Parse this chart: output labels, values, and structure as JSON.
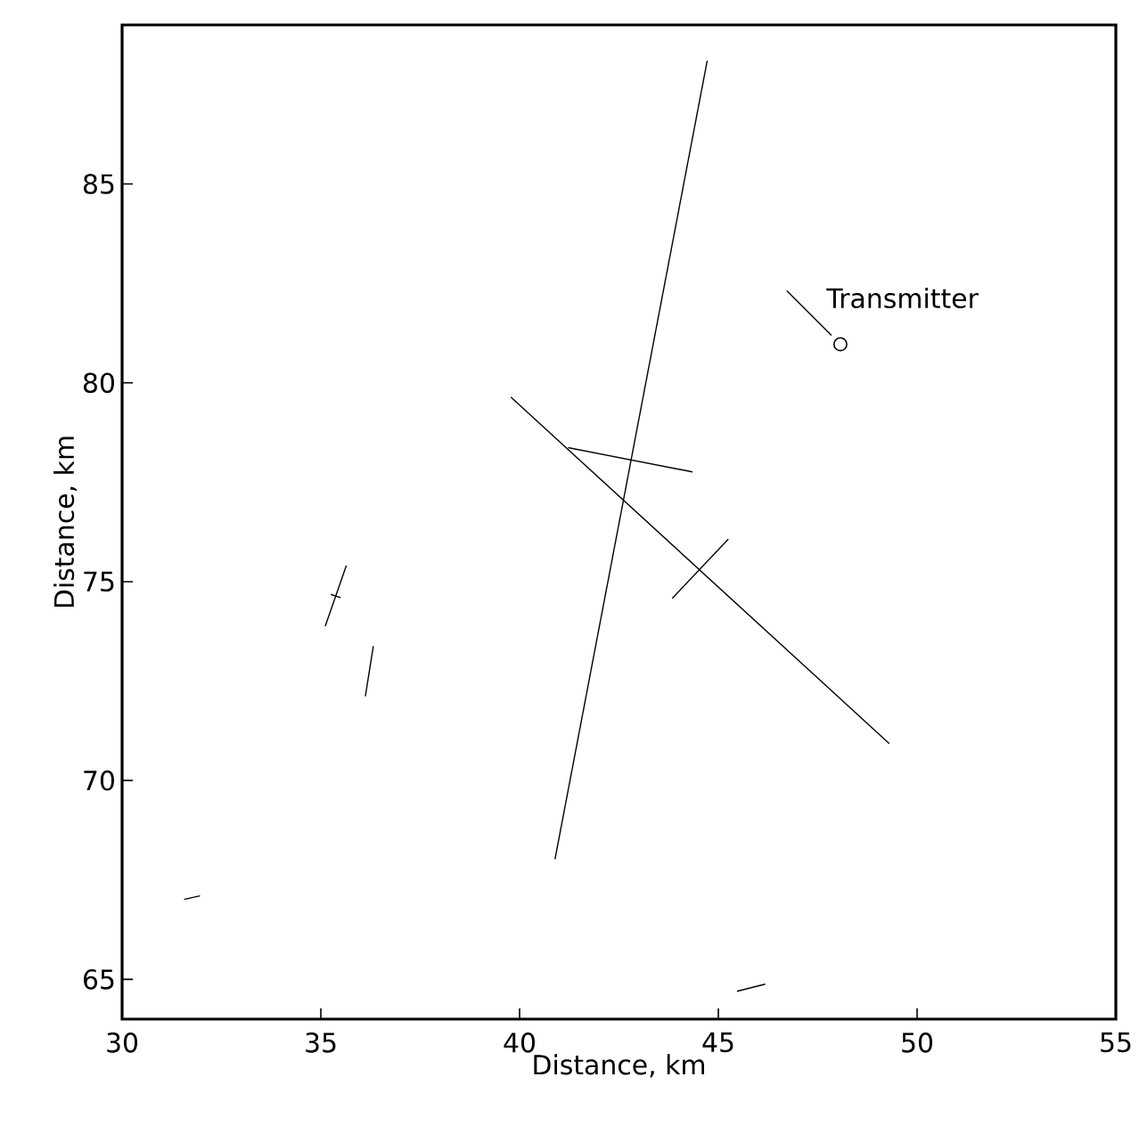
{
  "chart_data": {
    "type": "line",
    "xlabel": "Distance, km",
    "ylabel": "Distance, km",
    "xlim": [
      30,
      55
    ],
    "ylim": [
      64,
      89
    ],
    "xticks": [
      30,
      35,
      40,
      45,
      50,
      55
    ],
    "yticks": [
      65,
      70,
      75,
      80,
      85
    ],
    "grid": false,
    "legend": false,
    "series": [
      {
        "color": "#000000",
        "x": [
          44.72,
          40.89
        ],
        "values": [
          88.1,
          68.02
        ]
      },
      {
        "color": "#000000",
        "x": [
          39.78,
          49.3
        ],
        "values": [
          79.64,
          70.93
        ]
      },
      {
        "color": "#000000",
        "x": [
          41.22,
          44.35
        ],
        "values": [
          78.37,
          77.76
        ]
      },
      {
        "color": "#000000",
        "x": [
          43.84,
          45.25
        ],
        "values": [
          74.58,
          76.07
        ]
      },
      {
        "color": "#000000",
        "x": [
          35.11,
          35.64
        ],
        "values": [
          73.88,
          75.4
        ]
      },
      {
        "color": "#000000",
        "x": [
          35.25,
          35.5
        ],
        "values": [
          74.68,
          74.6
        ]
      },
      {
        "color": "#000000",
        "x": [
          36.12,
          36.32
        ],
        "values": [
          72.12,
          73.38
        ]
      },
      {
        "color": "#000000",
        "x": [
          31.56,
          31.96
        ],
        "values": [
          67.01,
          67.1
        ]
      },
      {
        "color": "#000000",
        "x": [
          45.47,
          46.18
        ],
        "values": [
          64.7,
          64.88
        ]
      },
      {
        "type": "scatter",
        "marker": "circle",
        "color": "#000000",
        "x": [
          48.07
        ],
        "values": [
          80.97
        ]
      }
    ],
    "annotations": [
      {
        "text": "Transmitter",
        "x": 48.07,
        "y": 80.97
      }
    ]
  }
}
